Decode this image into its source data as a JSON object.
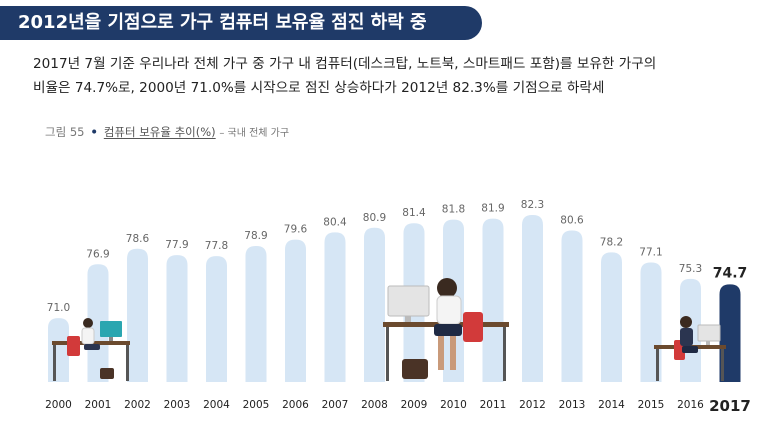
{
  "header": {
    "title": "2012년을 기점으로 가구 컴퓨터 보유율 점진 하락 중"
  },
  "description": {
    "line1": "2017년 7월 기준 우리나라 전체 가구 중 가구 내 컴퓨터(데스크탑, 노트북, 스마트패드 포함)를 보유한 가구의",
    "line2": "비율은 74.7%로, 2000년 71.0%를 시작으로 점진 상승하다가 2012년 82.3%를 기점으로 하락세"
  },
  "figure": {
    "number": "그림 55",
    "caption": "컴퓨터 보유율 추이(%)",
    "sub": "– 국내 전체 가구"
  },
  "colors": {
    "banner": "#1f3a68",
    "bar": "#d6e6f5",
    "highlight": "#1f3a68",
    "value_text": "#666666"
  },
  "chart_data": {
    "type": "bar",
    "categories": [
      "2000",
      "2001",
      "2002",
      "2003",
      "2004",
      "2005",
      "2006",
      "2007",
      "2008",
      "2009",
      "2010",
      "2011",
      "2012",
      "2013",
      "2014",
      "2015",
      "2016",
      "2017"
    ],
    "values": [
      71.0,
      76.9,
      78.6,
      77.9,
      77.8,
      78.9,
      79.6,
      80.4,
      80.9,
      81.4,
      81.8,
      81.9,
      82.3,
      80.6,
      78.2,
      77.1,
      75.3,
      74.7
    ],
    "value_labels": [
      "71.0",
      "76.9",
      "78.6",
      "77.9",
      "77.8",
      "78.9",
      "79.6",
      "80.4",
      "80.9",
      "81.4",
      "81.8",
      "81.9",
      "82.3",
      "80.6",
      "78.2",
      "77.1",
      "75.3",
      "74.7"
    ],
    "highlight_category": "2017",
    "grid": false,
    "legend": "none"
  }
}
